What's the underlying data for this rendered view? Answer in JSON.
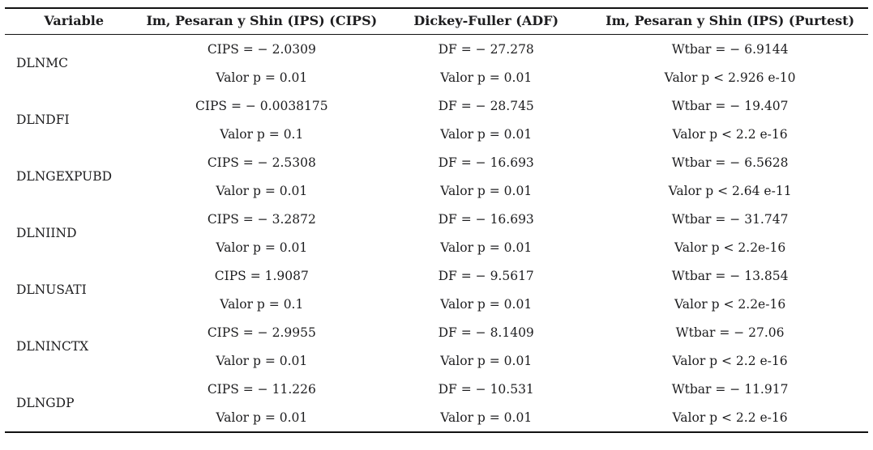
{
  "table": {
    "headers": [
      "Variable",
      "Im, Pesaran y Shin (IPS) (CIPS)",
      "Dickey-Fuller (ADF)",
      "Im, Pesaran y Shin (IPS) (Purtest)"
    ],
    "rows": [
      {
        "variable": "DLNMC",
        "cells": [
          [
            "CIPS = − 2.0309",
            "Valor p = 0.01"
          ],
          [
            "DF = − 27.278",
            "Valor p = 0.01"
          ],
          [
            "Wtbar = − 6.9144",
            "Valor p < 2.926 e-10"
          ]
        ]
      },
      {
        "variable": "DLNDFI",
        "cells": [
          [
            "CIPS = − 0.0038175",
            "Valor p = 0.1"
          ],
          [
            "DF = − 28.745",
            "Valor p = 0.01"
          ],
          [
            "Wtbar = − 19.407",
            "Valor p < 2.2 e-16"
          ]
        ]
      },
      {
        "variable": "DLNGEXPUBD",
        "cells": [
          [
            "CIPS = − 2.5308",
            "Valor p = 0.01"
          ],
          [
            "DF = − 16.693",
            "Valor p = 0.01"
          ],
          [
            "Wtbar = − 6.5628",
            "Valor p < 2.64 e-11"
          ]
        ]
      },
      {
        "variable": "DLNIIND",
        "cells": [
          [
            "CIPS = − 3.2872",
            "Valor p = 0.01"
          ],
          [
            "DF = − 16.693",
            "Valor p = 0.01"
          ],
          [
            "Wtbar = − 31.747",
            "Valor p < 2.2e-16"
          ]
        ]
      },
      {
        "variable": "DLNUSATI",
        "cells": [
          [
            "CIPS = 1.9087",
            "Valor p = 0.1"
          ],
          [
            "DF = − 9.5617",
            "Valor p = 0.01"
          ],
          [
            "Wtbar = − 13.854",
            "Valor p < 2.2e-16"
          ]
        ]
      },
      {
        "variable": "DLNINCTX",
        "cells": [
          [
            "CIPS = − 2.9955",
            "Valor p = 0.01"
          ],
          [
            "DF = − 8.1409",
            "Valor p = 0.01"
          ],
          [
            "Wtbar = − 27.06",
            "Valor p < 2.2 e-16"
          ]
        ]
      },
      {
        "variable": "DLNGDP",
        "cells": [
          [
            "CIPS = − 11.226",
            "Valor p = 0.01"
          ],
          [
            "DF = − 10.531",
            "Valor p = 0.01"
          ],
          [
            "Wtbar = − 11.917",
            "Valor p < 2.2 e-16"
          ]
        ]
      }
    ]
  }
}
